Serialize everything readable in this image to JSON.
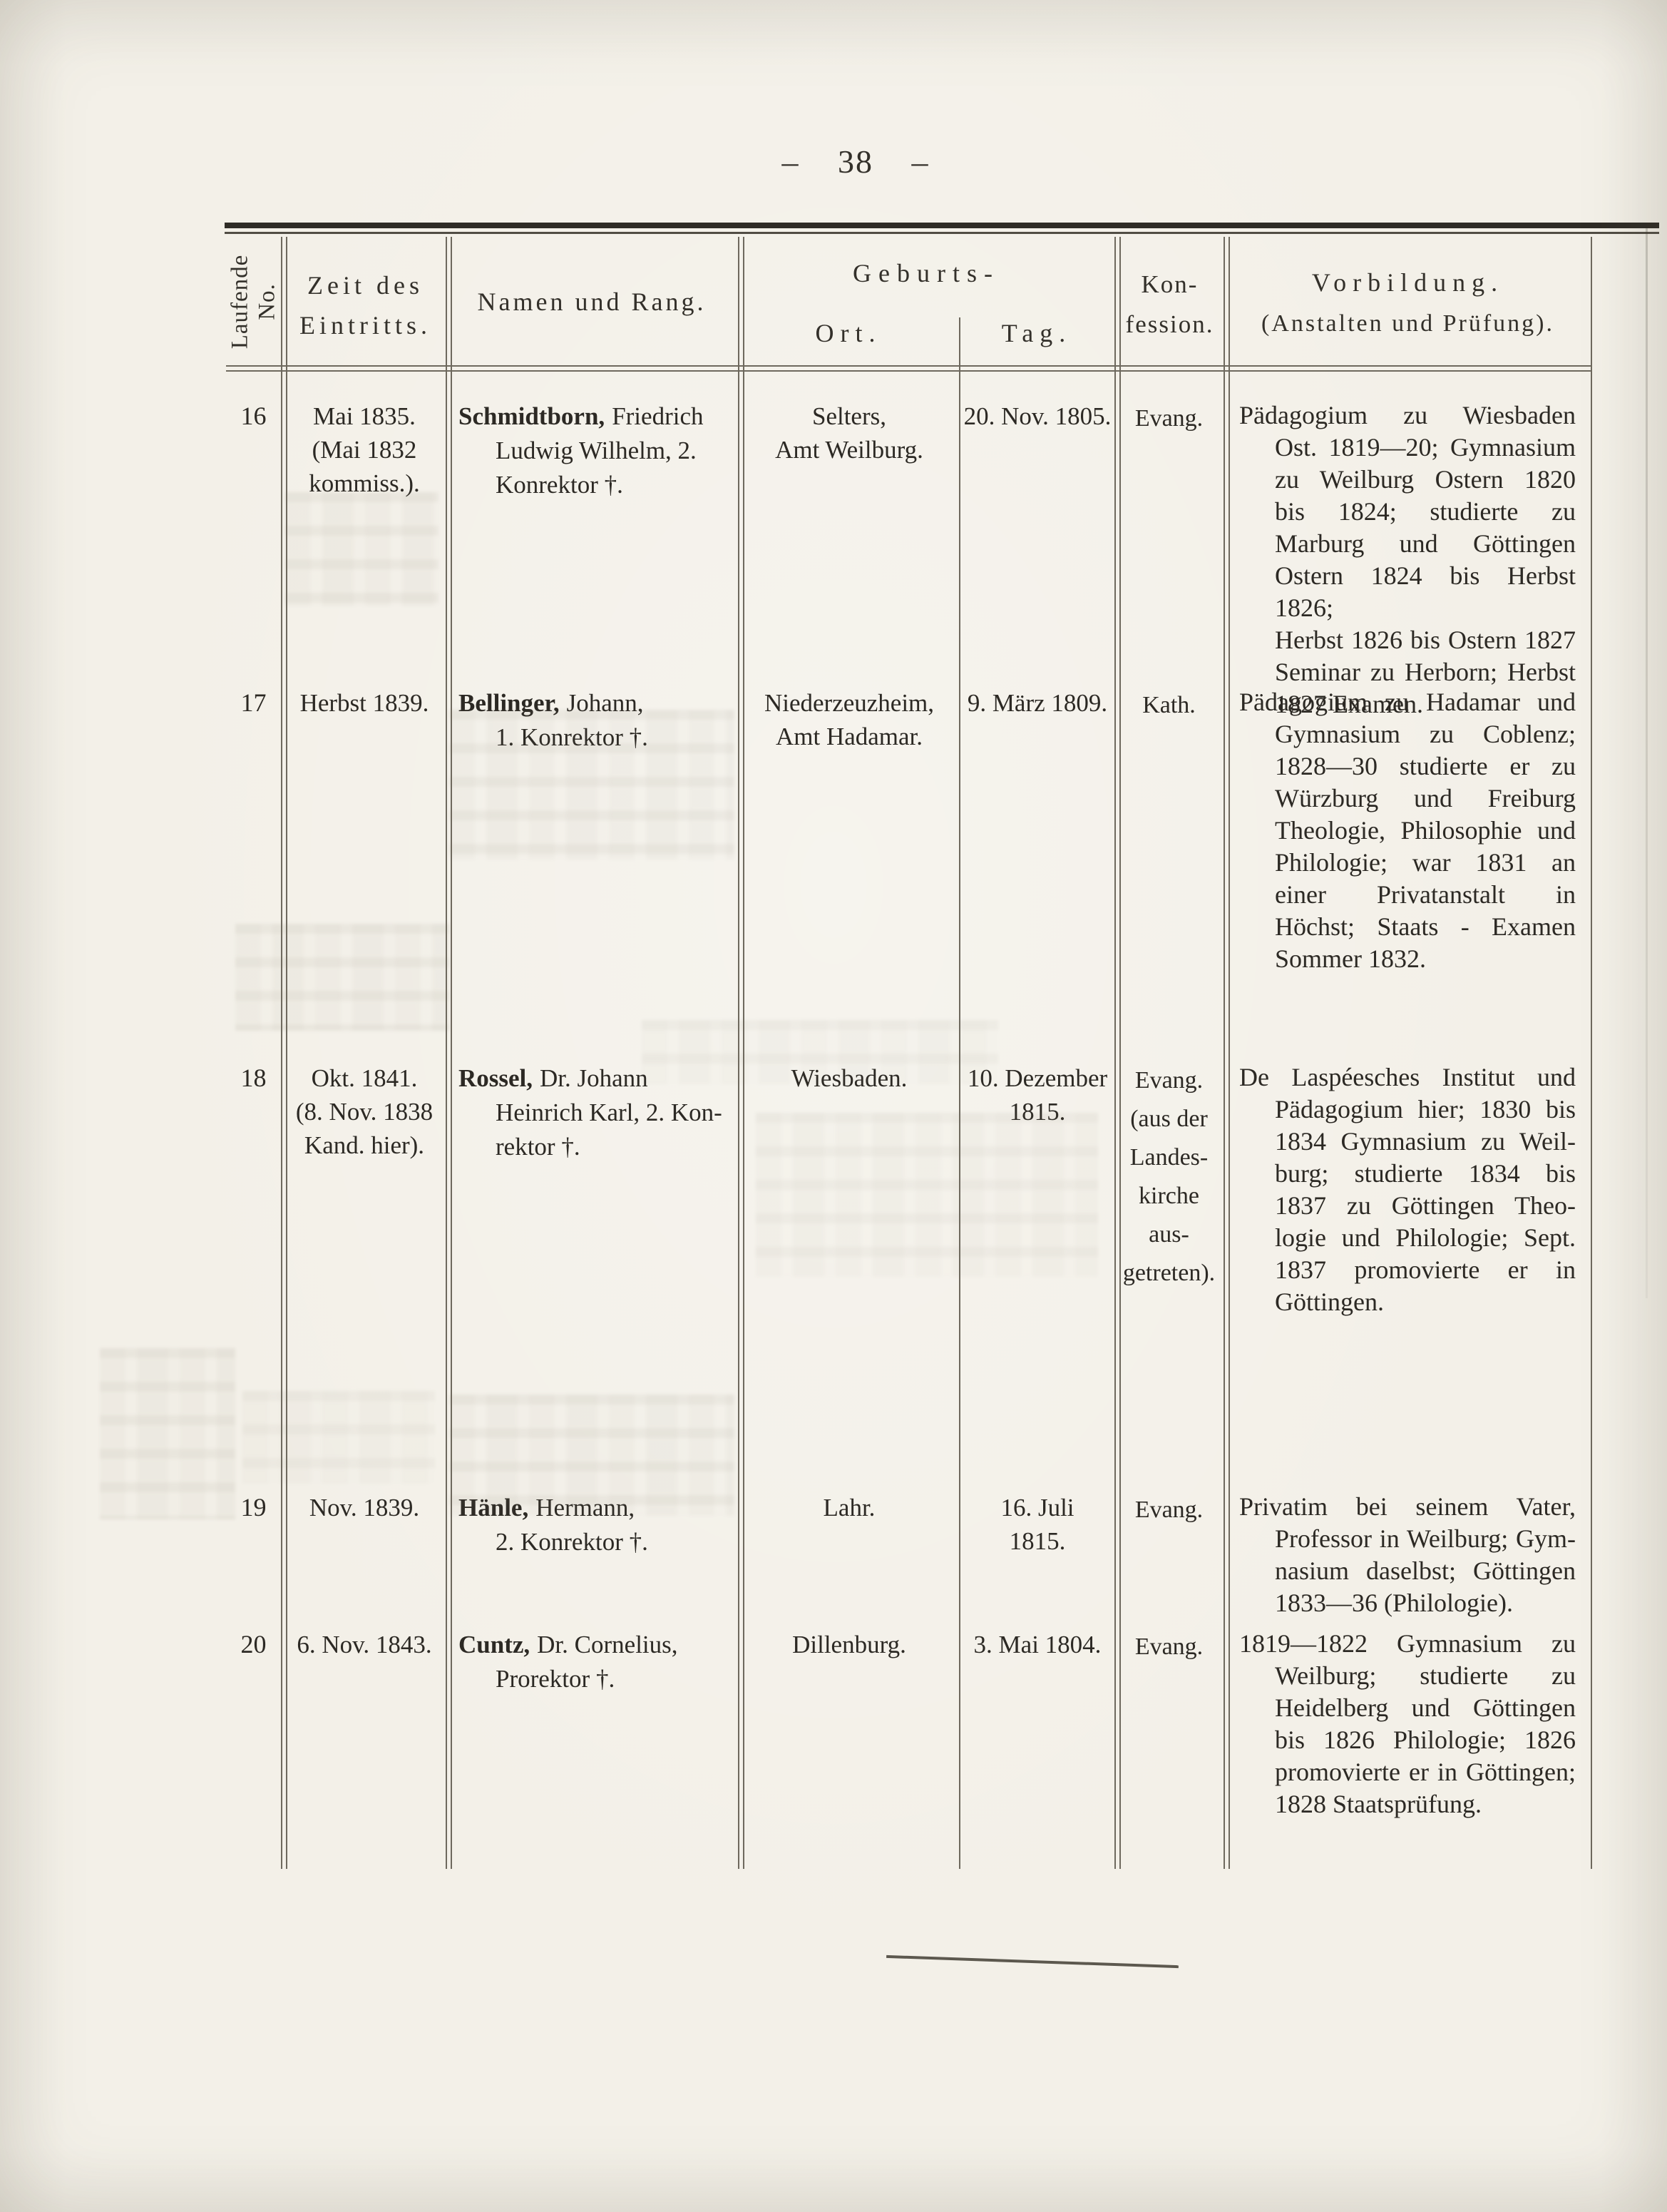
{
  "page": {
    "number_display": "– 38 –",
    "colors": {
      "paper": "#f3f0e8",
      "ink": "#2c2924",
      "rule_dark": "#2f2c26",
      "rule_thin": "#6e695e"
    }
  },
  "table": {
    "header": {
      "laufende": {
        "line1": "Laufende",
        "line2": "No."
      },
      "zeit": {
        "line1": "Zeit des",
        "line2": "Eintritts."
      },
      "namen": "Namen und Rang.",
      "geburts": {
        "group": "Geburts-",
        "ort": "Ort.",
        "tag": "Tag."
      },
      "konfession": {
        "line1": "Kon-",
        "line2": "fession."
      },
      "vorbildung": {
        "line1": "Vorbildung.",
        "line2": "(Anstalten und Prüfung)."
      }
    },
    "rows": [
      {
        "no": "16",
        "eintritt": [
          "Mai 1835.",
          "(Mai 1832",
          "kommiss.)."
        ],
        "name": {
          "surname": "Schmidtborn,",
          "given": "Friedrich",
          "cont": [
            "Ludwig Wilhelm, 2.",
            "Konrektor †."
          ]
        },
        "ort": [
          "Selters,",
          "Amt Weilburg."
        ],
        "tag": [
          "20. Nov. 1805."
        ],
        "konfession": [
          "Evang."
        ],
        "vorbildung": [
          "Pädagogium zu Wiesbaden",
          "Ost. 1819—20; Gymnasium",
          "zu Weilburg Ostern 1820",
          "bis 1824; studierte zu",
          "Marburg und Göttingen",
          "Ostern 1824 bis Herbst 1826;",
          "Herbst 1826 bis Ostern 1827",
          "Seminar zu Herborn; Herbst",
          "1827 Examen."
        ]
      },
      {
        "no": "17",
        "eintritt": [
          "Herbst 1839."
        ],
        "name": {
          "surname": "Bellinger,",
          "given": "Johann,",
          "cont": [
            "1. Konrektor †."
          ]
        },
        "ort": [
          "Niederzeuzheim,",
          "Amt Hadamar."
        ],
        "tag": [
          "9. März 1809."
        ],
        "konfession": [
          "Kath."
        ],
        "vorbildung": [
          "Pädagogium zu Hadamar und",
          "Gymnasium zu Coblenz;",
          "1828—30 studierte er zu",
          "Würzburg und Freiburg",
          "Theologie, Philosophie und",
          "Philologie; war 1831 an",
          "einer Privatanstalt in",
          "Höchst; Staats - Examen",
          "Sommer 1832."
        ]
      },
      {
        "no": "18",
        "eintritt": [
          "Okt. 1841.",
          "(8. Nov. 1838",
          "Kand. hier)."
        ],
        "name": {
          "surname": "Rossel,",
          "given": "Dr. Johann",
          "cont": [
            "Heinrich Karl, 2. Kon-",
            "rektor †."
          ]
        },
        "ort": [
          "Wiesbaden."
        ],
        "tag": [
          "10. Dezember",
          "1815."
        ],
        "konfession": [
          "Evang.",
          "(aus der",
          "Landes-",
          "kirche",
          "aus-",
          "getreten)."
        ],
        "vorbildung": [
          "De Laspéesches Institut und",
          "Pädagogium hier; 1830 bis",
          "1834 Gymnasium zu Weil-",
          "burg; studierte 1834 bis",
          "1837 zu Göttingen Theo-",
          "logie und Philologie; Sept.",
          "1837 promovierte er in",
          "Göttingen."
        ]
      },
      {
        "no": "19",
        "eintritt": [
          "Nov. 1839."
        ],
        "name": {
          "surname": "Hänle,",
          "given": "Hermann,",
          "cont": [
            "2. Konrektor †."
          ]
        },
        "ort": [
          "Lahr."
        ],
        "tag": [
          "16. Juli",
          "1815."
        ],
        "konfession": [
          "Evang."
        ],
        "vorbildung": [
          "Privatim bei seinem Vater,",
          "Professor in Weilburg; Gym-",
          "nasium daselbst; Göttingen",
          "1833—36 (Philologie)."
        ]
      },
      {
        "no": "20",
        "eintritt": [
          "6. Nov. 1843."
        ],
        "name": {
          "surname": "Cuntz,",
          "given": "Dr. Cornelius,",
          "cont": [
            "Prorektor †."
          ]
        },
        "ort": [
          "Dillenburg."
        ],
        "tag": [
          "3. Mai 1804."
        ],
        "konfession": [
          "Evang."
        ],
        "vorbildung": [
          "1819—1822 Gymnasium zu",
          "Weilburg; studierte zu",
          "Heidelberg und Göttingen",
          "bis 1826 Philologie; 1826",
          "promovierte er in Göttingen;",
          "1828 Staatsprüfung."
        ]
      }
    ]
  }
}
